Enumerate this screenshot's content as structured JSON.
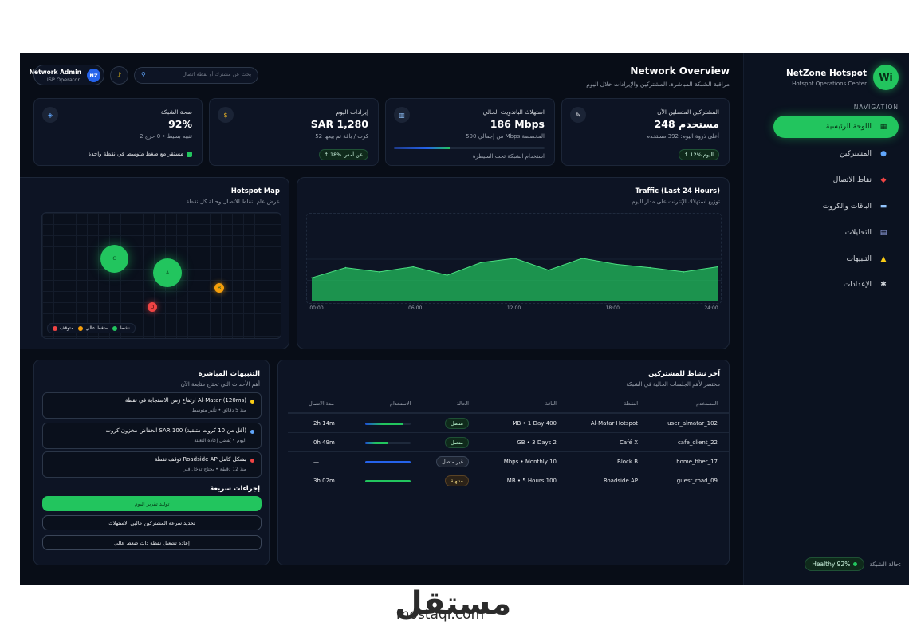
{
  "sidebar": {
    "logo_text": "Wi",
    "brand_name": "NetZone Hotspot",
    "brand_sub": "Hotspot Operations Center",
    "nav_label": "NAVIGATION",
    "items": [
      {
        "label": "اللوحة الرئيسية",
        "icon": "dashboard-icon"
      },
      {
        "label": "المشتركين",
        "icon": "users-icon"
      },
      {
        "label": "نقاط الاتصال",
        "icon": "pin-icon"
      },
      {
        "label": "الباقات والكروت",
        "icon": "card-icon"
      },
      {
        "label": "التحليلات",
        "icon": "chart-icon"
      },
      {
        "label": "التنبيهات",
        "icon": "warning-icon"
      },
      {
        "label": "الإعدادات",
        "icon": "gear-icon"
      }
    ],
    "health_label": "حالة الشبكة:",
    "health_value": "Healthy 92%"
  },
  "header": {
    "title": "Network Overview",
    "subtitle": "مراقبة الشبكة المباشرة، المشتركين والإيرادات خلال اليوم",
    "user_name": "Network Admin",
    "user_role": "ISP Operator",
    "user_initials": "NZ",
    "search_placeholder": "بحث عن مشترك أو نقطة اتصال"
  },
  "stats": {
    "subscribers": {
      "label": "المشتركين المتصلين الآن",
      "value": "248 مستخدم",
      "sub": "أعلى ذروة اليوم: 392 مستخدم",
      "pill": "↑ 12% اليوم"
    },
    "bandwidth": {
      "label": "استهلاك الباندويث الحالي",
      "value": "186 Mbps",
      "sub": "من إجمالي 500 Mbps المخصصة",
      "note": "استخدام الشبكة تحت السيطرة",
      "usage_fraction": 0.37
    },
    "revenue": {
      "label": "إيرادات اليوم",
      "value": "SAR 1,280",
      "sub": "52 كرت / باقة تم بيعها",
      "pill": "↑ 18% عن أمس"
    },
    "health": {
      "label": "صحة الشبكة",
      "value": "92%",
      "sub": "2 تنبيه بسيط • 0 حرج",
      "check": "مستقر مع ضغط متوسط في نقطة واحدة"
    }
  },
  "map": {
    "title": "Hotspot Map",
    "subtitle": "عرض عام لنقاط الاتصال وحالة كل نقطة",
    "points": [
      {
        "label": "C",
        "status": "active"
      },
      {
        "label": "A",
        "status": "active"
      },
      {
        "label": "B",
        "status": "high"
      },
      {
        "label": "D",
        "status": "down"
      }
    ],
    "legend": [
      {
        "label": "نشط",
        "color": "#22c55e"
      },
      {
        "label": "ضغط عالي",
        "color": "#f59e0b"
      },
      {
        "label": "متوقف",
        "color": "#ef4444"
      }
    ]
  },
  "traffic": {
    "title": "Traffic (Last 24 Hours)",
    "subtitle": "توزيع استهلاك الإنترنت على مدار اليوم"
  },
  "chart_data": {
    "type": "area",
    "title": "Traffic (Last 24 Hours)",
    "x": [
      "00:00",
      "02:00",
      "04:00",
      "06:00",
      "08:00",
      "10:00",
      "12:00",
      "14:00",
      "16:00",
      "18:00",
      "20:00",
      "22:00",
      "24:00"
    ],
    "x_tick_labels": [
      "00:00",
      "06:00",
      "12:00",
      "18:00",
      "24:00"
    ],
    "values": [
      28,
      40,
      35,
      41,
      31,
      46,
      51,
      37,
      51,
      44,
      40,
      35,
      41
    ],
    "ylim": [
      0,
      100
    ],
    "grid": true,
    "color": "#22c55e"
  },
  "alerts": {
    "title": "التنبيهات المباشرة",
    "subtitle": "أهم الأحداث التي تحتاج متابعة الآن",
    "items": [
      {
        "title": "ارتفاع زمن الاستجابة في نقطة Al-Matar (120ms)",
        "meta": "منذ 5 دقائق • تأثير متوسط",
        "color": "#facc15"
      },
      {
        "title": "انخفاض مخزون كروت SAR 100 (أقل من 10 كروت متبقية)",
        "meta": "اليوم • يُفضل إعادة التعبئة",
        "color": "#60a5fa"
      },
      {
        "title": "توقف نقطة Roadside AP بشكل كامل",
        "meta": "منذ 12 دقيقة • يحتاج تدخل فني",
        "color": "#ef4444"
      }
    ],
    "quick_title": "إجراءات سريعة",
    "actions": [
      "توليد تقرير اليوم",
      "تحديد سرعة المشتركين عاليي الاستهلاك",
      "إعادة تشغيل نقطة ذات ضغط عالي"
    ]
  },
  "activity": {
    "title": "آخر نشاط للمشتركين",
    "subtitle": "مختصر لأهم الجلسات الحالية في الشبكة",
    "columns": {
      "user": "المستخدم",
      "point": "النقطة",
      "plan": "الباقة",
      "status": "الحالة",
      "usage": "الاستخدام",
      "duration": "مدة الاتصال"
    },
    "rows": [
      {
        "user": "user_almatar_102",
        "point": "Al-Matar Hotspot",
        "plan": "MB • 1 Day 400",
        "status": "متصل",
        "status_kind": "ok",
        "usage": 0.85,
        "duration": "2h 14m"
      },
      {
        "user": "cafe_client_22",
        "point": "Café X",
        "plan": "GB • 3 Days 2",
        "status": "متصل",
        "status_kind": "ok",
        "usage": 0.5,
        "duration": "0h 49m"
      },
      {
        "user": "home_fiber_17",
        "point": "Block B",
        "plan": "Mbps • Monthly 10",
        "status": "غير متصل",
        "status_kind": "off",
        "usage": 1.0,
        "duration": "—"
      },
      {
        "user": "guest_road_09",
        "point": "Roadside AP",
        "plan": "MB • 5 Hours 100",
        "status": "منتهية",
        "status_kind": "exp",
        "usage": 1.0,
        "duration": "3h 02m"
      }
    ]
  },
  "watermark": {
    "arabic": "مستقل",
    "latin": "mostaql.com"
  }
}
